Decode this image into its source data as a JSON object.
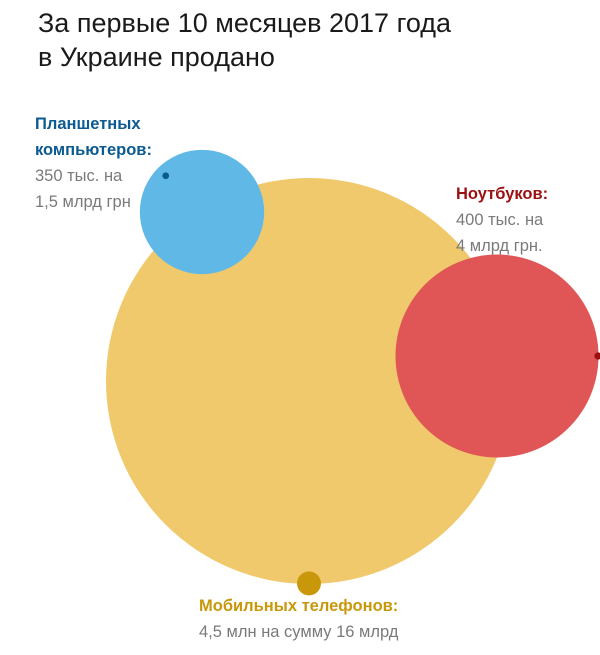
{
  "title": {
    "line1": "За первые 10 месяцев 2017 года",
    "line2": "в Украине продано"
  },
  "chart_data": {
    "type": "bubble",
    "title": "За первые 10 месяцев 2017 года в Украине продано",
    "series": [
      {
        "key": "phones",
        "name": "Мобильных телефонов:",
        "description": "4,5 млн на сумму 16 млрд",
        "units_sold": 4500000,
        "sales_value_uah": 16000000000,
        "color": "#f0c96c",
        "count_color": "#c9970a",
        "label_color": "#c9970a"
      },
      {
        "key": "tablets",
        "name_lines": [
          "Планшетных",
          "компьютеров:"
        ],
        "description_lines": [
          "350 тыс. на",
          "1,5 млрд грн"
        ],
        "units_sold": 350000,
        "sales_value_uah": 1500000000,
        "color": "#5fb8e6",
        "count_color": "#0b5a91",
        "label_color": "#0b5a91"
      },
      {
        "key": "laptops",
        "name": "Ноутбуков:",
        "description_lines": [
          "400 тыс. на",
          "4 млрд грн."
        ],
        "units_sold": 400000,
        "sales_value_uah": 4000000000,
        "color": "#e05555",
        "count_color": "#9b1010",
        "label_color": "#9b1010"
      }
    ]
  }
}
